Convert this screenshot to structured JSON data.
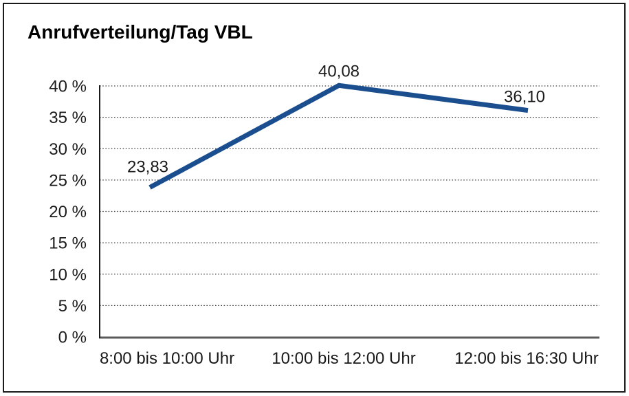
{
  "window": {
    "background": "#ffffff",
    "border_color": "#1a1a1a"
  },
  "chart_data": {
    "type": "line",
    "title": "Anrufverteilung/Tag VBL",
    "categories": [
      "8:00 bis 10:00 Uhr",
      "10:00 bis 12:00 Uhr",
      "12:00 bis 16:30 Uhr"
    ],
    "values": [
      23.83,
      40.08,
      36.1
    ],
    "data_labels": [
      "23,83",
      "40,08",
      "36,10"
    ],
    "ytick_labels": [
      "0 %",
      "5 %",
      "10 %",
      "15 %",
      "20 %",
      "25 %",
      "30 %",
      "35 %",
      "40 %"
    ],
    "ylim": [
      0,
      40
    ],
    "ytick_step": 5,
    "xlabel": "",
    "ylabel": "",
    "grid": "horizontal-dotted",
    "legend": "none",
    "line_color": "#1b4e8f",
    "text_color": "#1a1a1a",
    "gridline_color": "#3d3d3d",
    "xaxis_color": "#5a5a5a",
    "yaxis_color": "#1a1a1a"
  }
}
